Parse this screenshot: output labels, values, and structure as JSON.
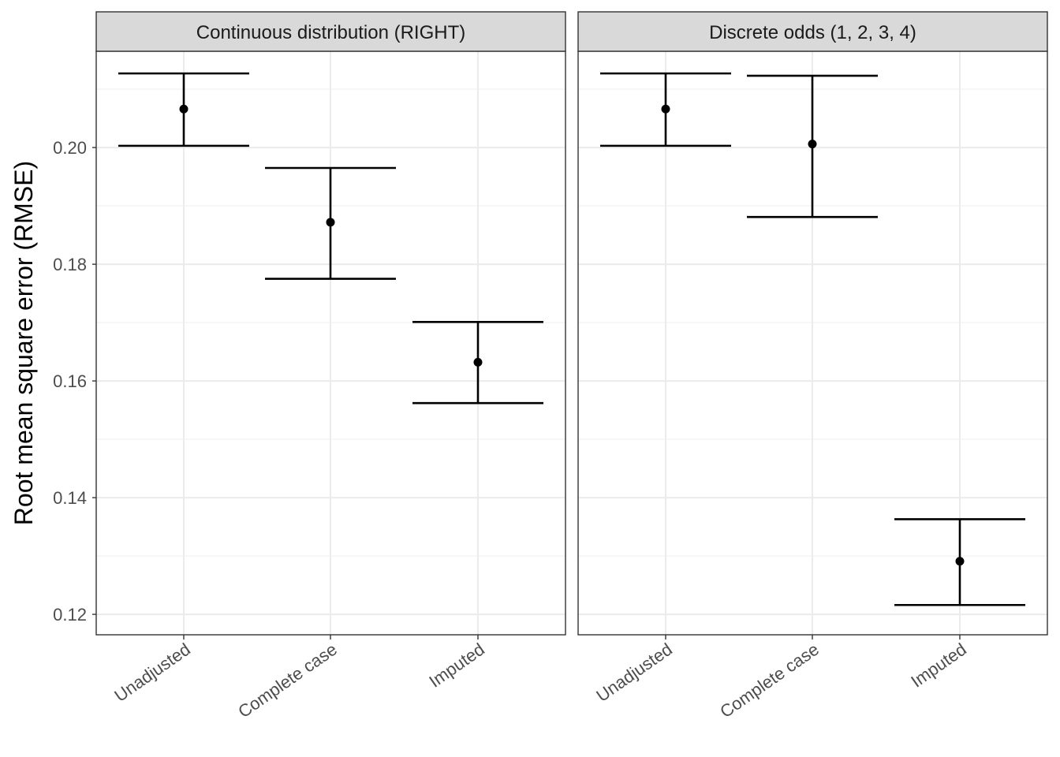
{
  "chart_data": {
    "type": "errorbar",
    "ylabel": "Root mean square error (RMSE)",
    "ylim": [
      0.1165,
      0.2165
    ],
    "y_ticks": [
      "0.12",
      "0.14",
      "0.16",
      "0.18",
      "0.20"
    ],
    "y_tick_values": [
      0.12,
      0.14,
      0.16,
      0.18,
      0.2
    ],
    "categories": [
      "Unadjusted",
      "Complete case",
      "Imputed"
    ],
    "panels": [
      {
        "title": "Continuous distribution (RIGHT)",
        "points": [
          {
            "category": "Unadjusted",
            "estimate": 0.2066,
            "lower": 0.2003,
            "upper": 0.2127
          },
          {
            "category": "Complete case",
            "estimate": 0.1872,
            "lower": 0.1775,
            "upper": 0.1965
          },
          {
            "category": "Imputed",
            "estimate": 0.1632,
            "lower": 0.1562,
            "upper": 0.1701
          }
        ]
      },
      {
        "title": "Discrete odds (1, 2, 3, 4)",
        "points": [
          {
            "category": "Unadjusted",
            "estimate": 0.2066,
            "lower": 0.2003,
            "upper": 0.2127
          },
          {
            "category": "Complete case",
            "estimate": 0.2006,
            "lower": 0.1881,
            "upper": 0.2123
          },
          {
            "category": "Imputed",
            "estimate": 0.1291,
            "lower": 0.1216,
            "upper": 0.1363
          }
        ]
      }
    ]
  }
}
